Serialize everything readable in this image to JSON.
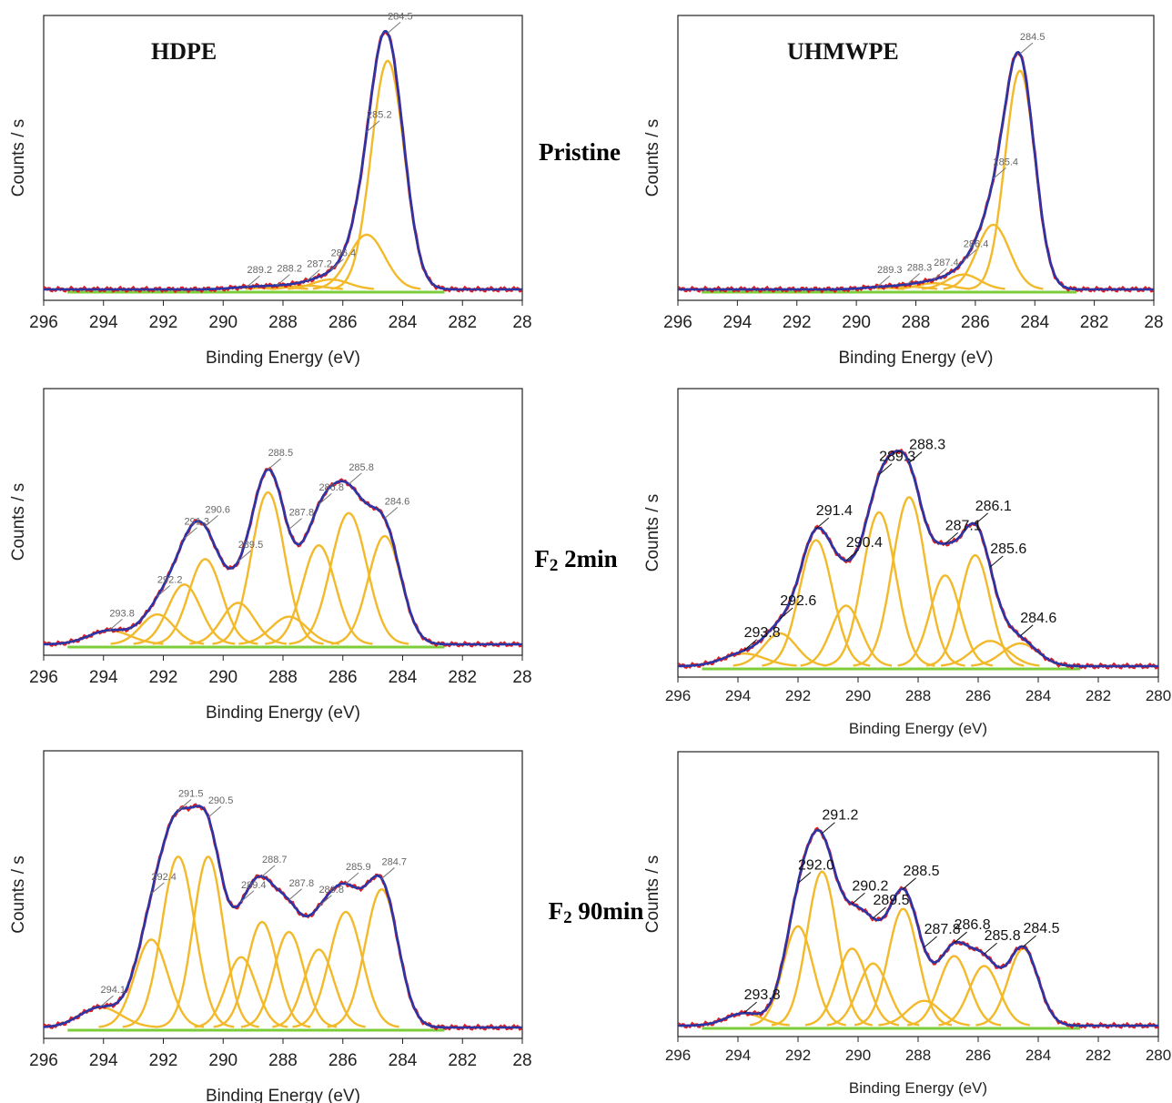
{
  "labels": {
    "pristine": "Pristine",
    "f2_2min_chem": "F",
    "f2_2min_sub": "2",
    "f2_2min_rest": " 2min",
    "f2_90min_chem": "F",
    "f2_90min_sub": "2",
    "f2_90min_rest": " 90min"
  },
  "chart_data": [
    {
      "id": "hdpe-pristine",
      "type": "line",
      "title": "HDPE",
      "xlabel": "Binding Energy (eV)",
      "ylabel": "Counts / s",
      "xlim": [
        296,
        280
      ],
      "xticks": [
        "296",
        "294",
        "292",
        "290",
        "288",
        "286",
        "284",
        "282",
        "28"
      ],
      "series": [
        {
          "role": "measured",
          "color": "#e02020"
        },
        {
          "role": "fit-envelope",
          "color": "#2a35a8"
        },
        {
          "role": "component",
          "color": "#f2b92a"
        },
        {
          "role": "background",
          "color": "#7ccd3a"
        }
      ],
      "peaks": [
        {
          "label": "284.5",
          "center": 284.5,
          "height": 0.92,
          "width": 0.55
        },
        {
          "label": "285.2",
          "center": 285.2,
          "height": 0.22,
          "width": 0.6
        },
        {
          "label": "286.4",
          "center": 286.4,
          "height": 0.04,
          "width": 0.6
        },
        {
          "label": "287.2",
          "center": 287.2,
          "height": 0.015,
          "width": 0.6
        },
        {
          "label": "288.2",
          "center": 288.2,
          "height": 0.01,
          "width": 0.6
        },
        {
          "label": "289.2",
          "center": 289.2,
          "height": 0.008,
          "width": 0.6
        }
      ]
    },
    {
      "id": "uhmwpe-pristine",
      "type": "line",
      "title": "UHMWPE",
      "xlabel": "Binding Energy (eV)",
      "ylabel": "Counts / s",
      "xlim": [
        296,
        280
      ],
      "xticks": [
        "296",
        "294",
        "292",
        "290",
        "288",
        "286",
        "284",
        "282",
        "28"
      ],
      "series": [
        {
          "role": "measured",
          "color": "#e02020"
        },
        {
          "role": "fit-envelope",
          "color": "#2a35a8"
        },
        {
          "role": "component",
          "color": "#f2b92a"
        },
        {
          "role": "background",
          "color": "#7ccd3a"
        }
      ],
      "peaks": [
        {
          "label": "284.5",
          "center": 284.5,
          "height": 0.88,
          "width": 0.5
        },
        {
          "label": "285.4",
          "center": 285.4,
          "height": 0.26,
          "width": 0.55
        },
        {
          "label": "286.4",
          "center": 286.4,
          "height": 0.06,
          "width": 0.55
        },
        {
          "label": "287.4",
          "center": 287.4,
          "height": 0.025,
          "width": 0.55
        },
        {
          "label": "288.3",
          "center": 288.3,
          "height": 0.012,
          "width": 0.55
        },
        {
          "label": "289.3",
          "center": 289.3,
          "height": 0.008,
          "width": 0.55
        }
      ]
    },
    {
      "id": "hdpe-f2-2min",
      "type": "line",
      "title": "",
      "xlabel": "Binding Energy (eV)",
      "ylabel": "Counts / s",
      "xlim": [
        296,
        280
      ],
      "xticks": [
        "296",
        "294",
        "292",
        "290",
        "288",
        "286",
        "284",
        "282",
        "28"
      ],
      "series": [
        {
          "role": "measured",
          "color": "#e02020"
        },
        {
          "role": "fit-envelope",
          "color": "#2a35a8"
        },
        {
          "role": "component",
          "color": "#f2b92a"
        },
        {
          "role": "background",
          "color": "#7ccd3a"
        }
      ],
      "peaks": [
        {
          "label": "284.6",
          "center": 284.6,
          "height": 0.47,
          "width": 0.55
        },
        {
          "label": "285.8",
          "center": 285.8,
          "height": 0.57,
          "width": 0.6
        },
        {
          "label": "286.8",
          "center": 286.8,
          "height": 0.43,
          "width": 0.55
        },
        {
          "label": "287.8",
          "center": 287.8,
          "height": 0.12,
          "width": 0.6
        },
        {
          "label": "288.5",
          "center": 288.5,
          "height": 0.66,
          "width": 0.55
        },
        {
          "label": "289.5",
          "center": 289.5,
          "height": 0.18,
          "width": 0.55
        },
        {
          "label": "290.6",
          "center": 290.6,
          "height": 0.37,
          "width": 0.55
        },
        {
          "label": "291.3",
          "center": 291.3,
          "height": 0.26,
          "width": 0.55
        },
        {
          "label": "292.2",
          "center": 292.2,
          "height": 0.13,
          "width": 0.55
        },
        {
          "label": "293.8",
          "center": 293.8,
          "height": 0.06,
          "width": 0.7
        }
      ]
    },
    {
      "id": "uhmwpe-f2-2min",
      "type": "line",
      "title": "",
      "xlabel": "Binding Energy (eV)",
      "ylabel": "Counts / s",
      "xlim": [
        296,
        280
      ],
      "xticks": [
        "296",
        "294",
        "292",
        "290",
        "288",
        "286",
        "284",
        "282",
        "280"
      ],
      "series": [
        {
          "role": "measured",
          "color": "#e02020"
        },
        {
          "role": "fit-envelope",
          "color": "#2a35a8"
        },
        {
          "role": "component",
          "color": "#f2b92a"
        },
        {
          "role": "background",
          "color": "#7ccd3a"
        }
      ],
      "peaks": [
        {
          "label": "284.6",
          "center": 284.6,
          "height": 0.09,
          "width": 0.6
        },
        {
          "label": "285.6",
          "center": 285.6,
          "height": 0.1,
          "width": 0.6
        },
        {
          "label": "286.1",
          "center": 286.1,
          "height": 0.44,
          "width": 0.5
        },
        {
          "label": "287.1",
          "center": 287.1,
          "height": 0.36,
          "width": 0.5
        },
        {
          "label": "288.3",
          "center": 288.3,
          "height": 0.67,
          "width": 0.55
        },
        {
          "label": "289.3",
          "center": 289.3,
          "height": 0.61,
          "width": 0.55
        },
        {
          "label": "290.4",
          "center": 290.4,
          "height": 0.24,
          "width": 0.5
        },
        {
          "label": "291.4",
          "center": 291.4,
          "height": 0.5,
          "width": 0.55
        },
        {
          "label": "292.6",
          "center": 292.6,
          "height": 0.13,
          "width": 0.55
        },
        {
          "label": "293.8",
          "center": 293.8,
          "height": 0.05,
          "width": 0.7
        }
      ]
    },
    {
      "id": "hdpe-f2-90min",
      "type": "line",
      "title": "",
      "xlabel": "Binding Energy (eV)",
      "ylabel": "Counts / s",
      "xlim": [
        296,
        280
      ],
      "xticks": [
        "296",
        "294",
        "292",
        "290",
        "288",
        "286",
        "284",
        "282",
        "28"
      ],
      "series": [
        {
          "role": "measured",
          "color": "#e02020"
        },
        {
          "role": "fit-envelope",
          "color": "#2a35a8"
        },
        {
          "role": "component",
          "color": "#f2b92a"
        },
        {
          "role": "background",
          "color": "#7ccd3a"
        }
      ],
      "peaks": [
        {
          "label": "284.7",
          "center": 284.7,
          "height": 0.55,
          "width": 0.55
        },
        {
          "label": "285.9",
          "center": 285.9,
          "height": 0.46,
          "width": 0.55
        },
        {
          "label": "286.8",
          "center": 286.8,
          "height": 0.31,
          "width": 0.5
        },
        {
          "label": "287.8",
          "center": 287.8,
          "height": 0.38,
          "width": 0.5
        },
        {
          "label": "288.7",
          "center": 288.7,
          "height": 0.42,
          "width": 0.5
        },
        {
          "label": "289.4",
          "center": 289.4,
          "height": 0.28,
          "width": 0.5
        },
        {
          "label": "290.5",
          "center": 290.5,
          "height": 0.68,
          "width": 0.5
        },
        {
          "label": "291.5",
          "center": 291.5,
          "height": 0.68,
          "width": 0.55
        },
        {
          "label": "292.4",
          "center": 292.4,
          "height": 0.35,
          "width": 0.55
        },
        {
          "label": "294.1",
          "center": 294.1,
          "height": 0.08,
          "width": 0.7
        }
      ]
    },
    {
      "id": "uhmwpe-f2-90min",
      "type": "line",
      "title": "",
      "xlabel": "Binding Energy (eV)",
      "ylabel": "Counts / s",
      "xlim": [
        296,
        280
      ],
      "xticks": [
        "296",
        "294",
        "292",
        "290",
        "288",
        "286",
        "284",
        "282",
        "280"
      ],
      "series": [
        {
          "role": "measured",
          "color": "#e02020"
        },
        {
          "role": "fit-envelope",
          "color": "#2a35a8"
        },
        {
          "role": "component",
          "color": "#f2b92a"
        },
        {
          "role": "background",
          "color": "#7ccd3a"
        }
      ],
      "peaks": [
        {
          "label": "284.5",
          "center": 284.5,
          "height": 0.31,
          "width": 0.5
        },
        {
          "label": "285.8",
          "center": 285.8,
          "height": 0.24,
          "width": 0.5
        },
        {
          "label": "286.8",
          "center": 286.8,
          "height": 0.28,
          "width": 0.5
        },
        {
          "label": "287.8",
          "center": 287.8,
          "height": 0.1,
          "width": 0.55
        },
        {
          "label": "288.5",
          "center": 288.5,
          "height": 0.47,
          "width": 0.5
        },
        {
          "label": "289.5",
          "center": 289.5,
          "height": 0.25,
          "width": 0.5
        },
        {
          "label": "290.2",
          "center": 290.2,
          "height": 0.31,
          "width": 0.5
        },
        {
          "label": "291.2",
          "center": 291.2,
          "height": 0.62,
          "width": 0.5
        },
        {
          "label": "292.0",
          "center": 292.0,
          "height": 0.4,
          "width": 0.5
        },
        {
          "label": "293.8",
          "center": 293.8,
          "height": 0.05,
          "width": 0.6
        }
      ]
    }
  ]
}
